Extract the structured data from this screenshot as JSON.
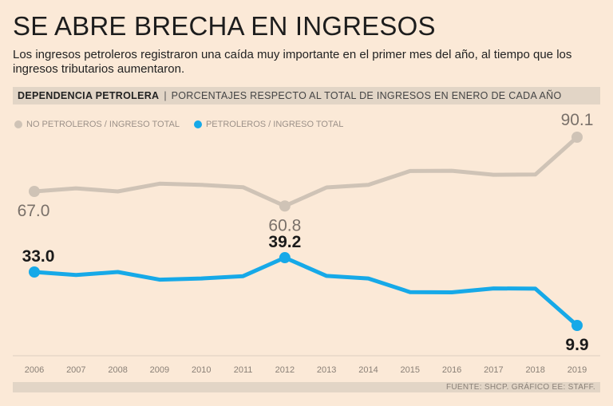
{
  "headline": "SE ABRE BRECHA EN INGRESOS",
  "subtitle": "Los ingresos petroleros registraron una caída muy importante en el primer mes del año, al tiempo que los ingresos  tributarios aumentaron.",
  "band": {
    "bold": "DEPENDENCIA PETROLERA",
    "sep": "|",
    "light": "PORCENTAJES RESPECTO AL TOTAL DE INGRESOS EN ENERO DE CADA AÑO"
  },
  "legend": {
    "no_petroleros": "NO PETROLEROS / INGRESO TOTAL",
    "petroleros": "PETROLEROS / INGRESO TOTAL"
  },
  "source": "FUENTE: SHCP. GRÁFICO EE: STAFF.",
  "colors": {
    "grey_series": "#cfc3b6",
    "blue_series": "#16a9e8"
  },
  "chart_data": {
    "type": "line",
    "x": [
      "2006",
      "2007",
      "2008",
      "2009",
      "2010",
      "2011",
      "2012",
      "2013",
      "2014",
      "2015",
      "2016",
      "2017",
      "2018",
      "2019"
    ],
    "series": [
      {
        "name": "NO PETROLEROS / INGRESO TOTAL",
        "values": [
          67.0,
          68.3,
          67.0,
          70.3,
          69.8,
          68.8,
          60.8,
          68.7,
          69.8,
          75.7,
          75.8,
          74.1,
          74.2,
          90.1
        ],
        "labels": [
          {
            "index": 0,
            "text": "67.0"
          },
          {
            "index": 6,
            "text": "60.8"
          },
          {
            "index": 13,
            "text": "90.1"
          }
        ]
      },
      {
        "name": "PETROLEROS / INGRESO TOTAL",
        "values": [
          33.0,
          31.7,
          33.0,
          29.7,
          30.2,
          31.2,
          39.2,
          31.3,
          30.2,
          24.3,
          24.2,
          25.9,
          25.8,
          9.9
        ],
        "labels": [
          {
            "index": 0,
            "text": "33.0"
          },
          {
            "index": 6,
            "text": "39.2"
          },
          {
            "index": 13,
            "text": "9.9"
          }
        ]
      }
    ],
    "title": "DEPENDENCIA PETROLERA",
    "ylabel": "PORCENTAJES RESPECTO AL TOTAL DE INGRESOS EN ENERO DE CADA AÑO",
    "grid": false,
    "legend": "top-left"
  }
}
